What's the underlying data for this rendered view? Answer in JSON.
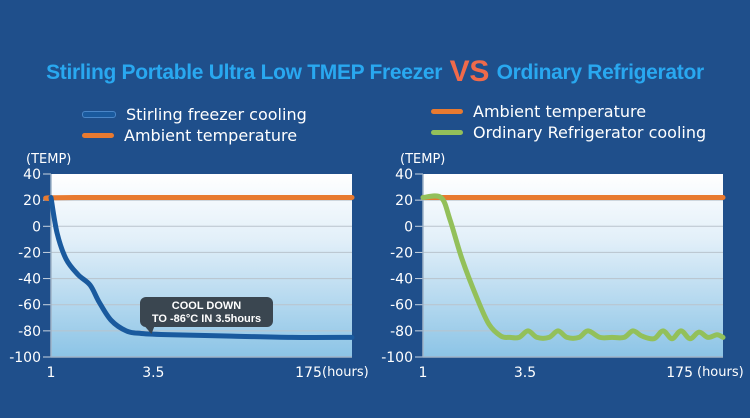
{
  "title": {
    "left": "Stirling Portable Ultra Low TMEP Freezer",
    "vs": "VS",
    "right": "Ordinary Refrigerator"
  },
  "colors": {
    "background": "#1f4f8b",
    "title": "#29a8f0",
    "vs": "#f06a4a",
    "stirling": "#1a5a9e",
    "ambient": "#e87a30",
    "ordinary": "#93c05a"
  },
  "chart_data": [
    {
      "type": "line",
      "ylabel": "(TEMP)",
      "xlabel": "(hours)",
      "ylim": [
        -100,
        40
      ],
      "yticks": [
        "40",
        "20",
        "0",
        "-20",
        "-40",
        "-60",
        "-80",
        "-100"
      ],
      "yticks_values": [
        40,
        20,
        0,
        -20,
        -40,
        -60,
        -80,
        -100
      ],
      "xticks": [
        "1",
        "3.5",
        "175"
      ],
      "grid": true,
      "legend": [
        {
          "label": "Stirling freezer cooling",
          "color": "#1a5a9e"
        },
        {
          "label": "Ambient temperature",
          "color": "#e87a30"
        }
      ],
      "series": [
        {
          "name": "Ambient temperature",
          "x": [
            0,
            0.08,
            1
          ],
          "y": [
            21,
            22,
            22
          ]
        },
        {
          "name": "Stirling freezer cooling",
          "x": [
            0,
            0.02,
            0.05,
            0.09,
            0.13,
            0.16,
            0.2,
            0.25,
            0.3,
            0.4,
            0.6,
            0.8,
            1.0
          ],
          "y": [
            22,
            -5,
            -25,
            -37,
            -45,
            -58,
            -72,
            -80,
            -82,
            -83,
            -84,
            -85,
            -85
          ]
        }
      ],
      "annotation": [
        "COOL DOWN",
        "TO -86°C IN 3.5hours"
      ]
    },
    {
      "type": "line",
      "ylabel": "(TEMP)",
      "xlabel": "(hours)",
      "ylim": [
        -100,
        40
      ],
      "yticks": [
        "40",
        "20",
        "0",
        "-20",
        "-40",
        "-60",
        "-80",
        "-100"
      ],
      "yticks_values": [
        40,
        20,
        0,
        -20,
        -40,
        -60,
        -80,
        -100
      ],
      "xticks": [
        "1",
        "3.5",
        "175"
      ],
      "grid": true,
      "legend": [
        {
          "label": "Ambient temperature",
          "color": "#e87a30"
        },
        {
          "label": "Ordinary Refrigerator cooling",
          "color": "#93c05a"
        }
      ],
      "series": [
        {
          "name": "Ambient temperature",
          "x": [
            0,
            1
          ],
          "y": [
            22,
            22
          ]
        },
        {
          "name": "Ordinary Refrigerator cooling",
          "x": [
            0,
            0.06,
            0.09,
            0.13,
            0.18,
            0.22,
            0.26,
            0.29,
            0.32,
            0.35,
            0.38,
            0.42,
            0.45,
            0.48,
            0.52,
            0.55,
            0.59,
            0.63,
            0.67,
            0.7,
            0.73,
            0.77,
            0.8,
            0.83,
            0.86,
            0.89,
            0.92,
            0.95,
            0.98,
            1.0
          ],
          "y": [
            22,
            22,
            5,
            -25,
            -55,
            -75,
            -84,
            -85,
            -85,
            -80,
            -85,
            -85,
            -80,
            -85,
            -85,
            -80,
            -85,
            -85,
            -85,
            -80,
            -84,
            -86,
            -80,
            -86,
            -80,
            -86,
            -81,
            -85,
            -83,
            -85
          ]
        }
      ]
    }
  ]
}
